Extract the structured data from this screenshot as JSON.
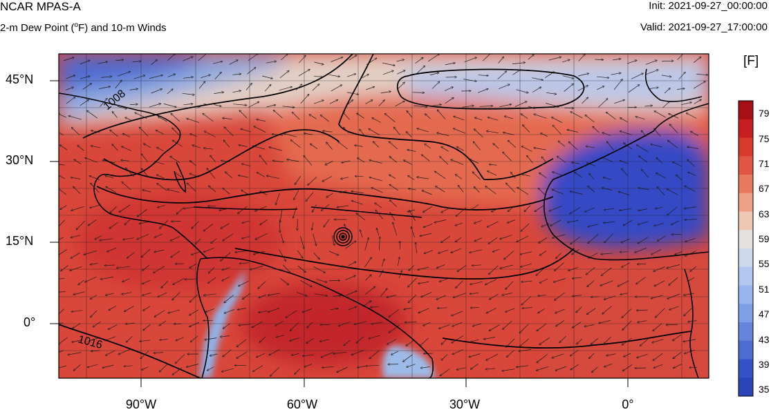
{
  "header": {
    "model": "NCAR MPAS-A",
    "field_pre": "2-m Dew Point (",
    "field_sup": "o",
    "field_post": "F) and 10-m Winds",
    "init": "Init: 2021-09-27_00:00:00",
    "valid": "Valid: 2021-09-27_17:00:00"
  },
  "map": {
    "lat_labels": [
      "45°N",
      "30°N",
      "15°N",
      "0°"
    ],
    "lon_labels": [
      "90°W",
      "60°W",
      "30°W",
      "0°"
    ],
    "contour_labels": [
      "1008",
      "1016"
    ],
    "storm_feature": "closed low (hurricane)",
    "colors": {
      "moist": "#d73a2c",
      "warm": "#e8785e",
      "neutral": "#e9dccf",
      "cool": "#8fb0e6",
      "dry": "#3452c8",
      "contour": "#000000",
      "vector": "#222222"
    }
  },
  "colorbar": {
    "unit": "[F]",
    "labels": [
      "79",
      "75",
      "71",
      "67",
      "63",
      "59",
      "55",
      "51",
      "47",
      "43",
      "39",
      "35"
    ],
    "colors": [
      "#a50f15",
      "#c81e22",
      "#d73a2c",
      "#e05543",
      "#e8785e",
      "#eea087",
      "#edc6b4",
      "#e3e1e0",
      "#cdd8ec",
      "#b3c8f0",
      "#9ab5ee",
      "#7f9ee8",
      "#6585dd",
      "#4c6cd2",
      "#3452c8",
      "#2a45b8"
    ]
  }
}
